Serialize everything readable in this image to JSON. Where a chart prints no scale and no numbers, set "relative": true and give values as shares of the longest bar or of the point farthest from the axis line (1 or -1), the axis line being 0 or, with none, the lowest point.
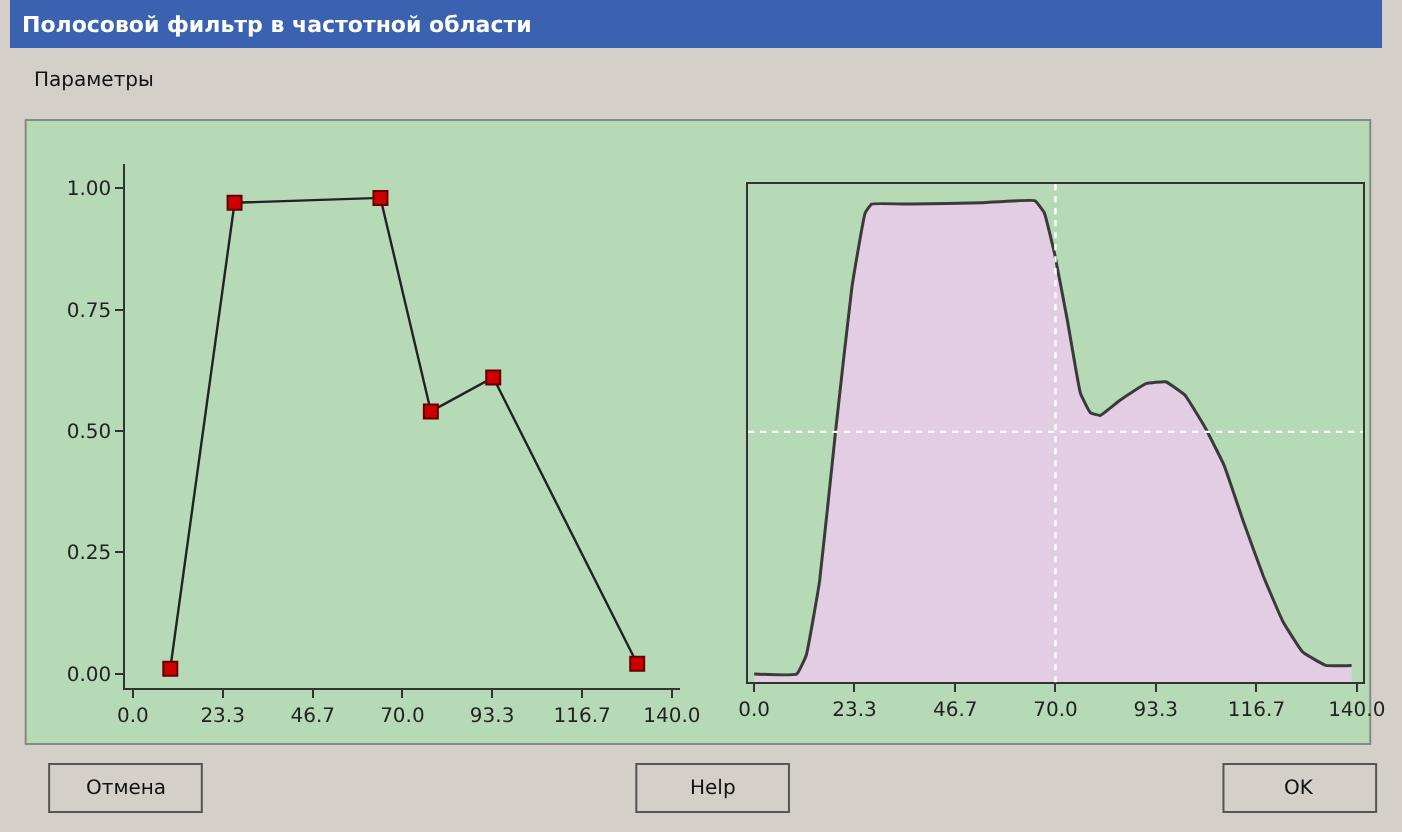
{
  "chart_data": [
    {
      "type": "line",
      "title": "Полосовой фильтр в частотной области",
      "annotations": [
        "Параметры",
        "Отмена",
        "Help",
        "OK"
      ],
      "x": [
        9.7,
        26.4,
        64.3,
        77.4,
        93.6,
        131
      ],
      "series": [
        {
          "color": "#222222",
          "values": [
            0.01,
            0.97,
            0.98,
            0.54,
            0.61,
            0.02
          ]
        }
      ],
      "marker": "square",
      "grid": false,
      "xlim": [
        -2,
        142
      ],
      "xticks": [
        {
          "value": 0,
          "label": "0.0"
        },
        23.3,
        46.7,
        {
          "value": 70,
          "label": "70.0"
        },
        93.3,
        116.7,
        {
          "value": 140,
          "label": "140.0"
        }
      ],
      "ylim": [
        -0.03,
        1.05
      ],
      "yticks": [
        {
          "value": 0,
          "label": "0.00"
        },
        0.25,
        {
          "value": 0.5,
          "label": "0.50"
        },
        0.75,
        {
          "value": 1,
          "label": "1.00"
        }
      ]
    },
    {
      "type": "area",
      "relative": true,
      "x": [
        0,
        9.9,
        12.1,
        15.2,
        18.9,
        22.7,
        25.8,
        27.3,
        36.4,
        53.1,
        65.2,
        67.4,
        69.8,
        72.8,
        75.8,
        78.1,
        80.4,
        84.9,
        91.0,
        95.6,
        100.1,
        104.7,
        109.2,
        113.8,
        118.3,
        122.9,
        127.4,
        132.8,
        138.8
      ],
      "series": [
        {
          "color": "#e2cde2",
          "values": [
            0.017,
            0.017,
            0.056,
            0.21,
            0.52,
            0.82,
            0.975,
            0.993,
            0.993,
            0.996,
            1,
            0.975,
            0.89,
            0.75,
            0.6,
            0.56,
            0.554,
            0.585,
            0.62,
            0.624,
            0.596,
            0.53,
            0.45,
            0.33,
            0.22,
            0.125,
            0.063,
            0.035,
            0.035
          ]
        }
      ],
      "ref_lines": [
        {
          "axis": "x",
          "value": 70,
          "color": "#ffffff",
          "line_style": "dotted"
        },
        {
          "axis": "y",
          "value": 0.52,
          "color": "#ffffff",
          "line_style": "dotted"
        }
      ],
      "grid": false,
      "xlim": [
        -1.4,
        141.4
      ],
      "xticks": [
        {
          "value": 0,
          "label": "0.0"
        },
        23.3,
        46.7,
        {
          "value": 70,
          "label": "70.0"
        },
        93.3,
        116.7,
        {
          "value": 140,
          "label": "140.0"
        }
      ]
    }
  ]
}
